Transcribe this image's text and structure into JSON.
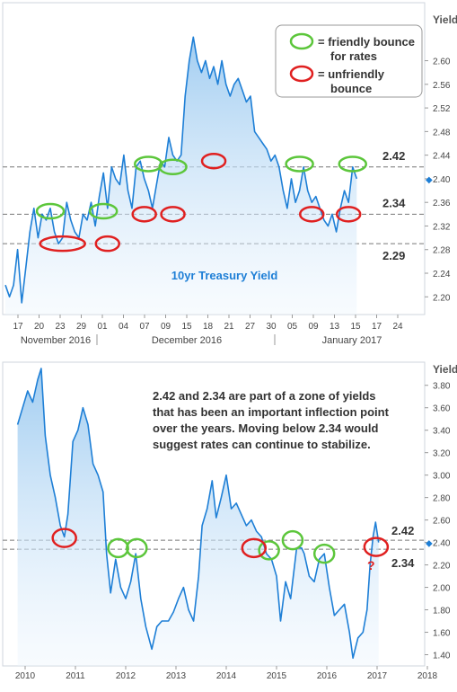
{
  "chart_data": [
    {
      "type": "line",
      "title": "10yr Treasury Yield",
      "ylabel": "Yield",
      "ylim": [
        2.17,
        2.68
      ],
      "y_ticks": [
        2.2,
        2.24,
        2.28,
        2.32,
        2.36,
        2.4,
        2.44,
        2.48,
        2.52,
        2.56,
        2.6
      ],
      "y_tick_labels": [
        "2.20",
        "2.24",
        "2.28",
        "2.32",
        "2.36",
        "2.40",
        "2.44",
        "2.48",
        "2.52",
        "2.56",
        "2.60"
      ],
      "x_day_ticks": [
        "17",
        "20",
        "23",
        "29",
        "01",
        "04",
        "07",
        "09",
        "15",
        "18",
        "21",
        "27",
        "30",
        "05",
        "09",
        "13",
        "15",
        "17",
        "24"
      ],
      "x_month_labels": [
        "November 2016",
        "December 2016",
        "January 2017"
      ],
      "reference_lines": [
        {
          "value": 2.42,
          "label": "2.42"
        },
        {
          "value": 2.34,
          "label": "2.34"
        },
        {
          "value": 2.29,
          "label": "2.29"
        }
      ],
      "current_value": 2.4,
      "current_marker": "◆",
      "series": [
        {
          "name": "10yr Treasury Yield",
          "points": [
            [
              0,
              2.22
            ],
            [
              1,
              2.2
            ],
            [
              2,
              2.22
            ],
            [
              3,
              2.28
            ],
            [
              4,
              2.19
            ],
            [
              5,
              2.25
            ],
            [
              6,
              2.31
            ],
            [
              7,
              2.35
            ],
            [
              8,
              2.3
            ],
            [
              9,
              2.34
            ],
            [
              10,
              2.33
            ],
            [
              11,
              2.35
            ],
            [
              12,
              2.31
            ],
            [
              13,
              2.29
            ],
            [
              14,
              2.3
            ],
            [
              15,
              2.36
            ],
            [
              16,
              2.33
            ],
            [
              17,
              2.31
            ],
            [
              18,
              2.3
            ],
            [
              19,
              2.34
            ],
            [
              20,
              2.33
            ],
            [
              21,
              2.36
            ],
            [
              22,
              2.32
            ],
            [
              23,
              2.37
            ],
            [
              24,
              2.41
            ],
            [
              25,
              2.35
            ],
            [
              26,
              2.42
            ],
            [
              27,
              2.4
            ],
            [
              28,
              2.39
            ],
            [
              29,
              2.44
            ],
            [
              30,
              2.38
            ],
            [
              31,
              2.35
            ],
            [
              32,
              2.42
            ],
            [
              33,
              2.43
            ],
            [
              34,
              2.4
            ],
            [
              35,
              2.38
            ],
            [
              36,
              2.35
            ],
            [
              37,
              2.39
            ],
            [
              38,
              2.43
            ],
            [
              39,
              2.42
            ],
            [
              40,
              2.47
            ],
            [
              41,
              2.44
            ],
            [
              42,
              2.43
            ],
            [
              43,
              2.44
            ],
            [
              44,
              2.54
            ],
            [
              45,
              2.6
            ],
            [
              46,
              2.64
            ],
            [
              47,
              2.6
            ],
            [
              48,
              2.58
            ],
            [
              49,
              2.6
            ],
            [
              50,
              2.57
            ],
            [
              51,
              2.59
            ],
            [
              52,
              2.56
            ],
            [
              53,
              2.6
            ],
            [
              54,
              2.56
            ],
            [
              55,
              2.54
            ],
            [
              56,
              2.56
            ],
            [
              57,
              2.57
            ],
            [
              58,
              2.55
            ],
            [
              59,
              2.53
            ],
            [
              60,
              2.54
            ],
            [
              61,
              2.48
            ],
            [
              62,
              2.47
            ],
            [
              63,
              2.46
            ],
            [
              64,
              2.45
            ],
            [
              65,
              2.43
            ],
            [
              66,
              2.44
            ],
            [
              67,
              2.42
            ],
            [
              68,
              2.38
            ],
            [
              69,
              2.35
            ],
            [
              70,
              2.4
            ],
            [
              71,
              2.36
            ],
            [
              72,
              2.38
            ],
            [
              73,
              2.42
            ],
            [
              74,
              2.38
            ],
            [
              75,
              2.36
            ],
            [
              76,
              2.37
            ],
            [
              77,
              2.35
            ],
            [
              78,
              2.33
            ],
            [
              79,
              2.32
            ],
            [
              80,
              2.34
            ],
            [
              81,
              2.31
            ],
            [
              82,
              2.35
            ],
            [
              83,
              2.38
            ],
            [
              84,
              2.36
            ],
            [
              85,
              2.42
            ],
            [
              86,
              2.4
            ]
          ]
        }
      ],
      "note_title": "10yr Treasury Yield",
      "legend": [
        {
          "label_line1": "= friendly bounce",
          "label_line2": "for rates",
          "color": "#5cc63b"
        },
        {
          "label_line1": "= unfriendly",
          "label_line2": "bounce",
          "color": "#e02020"
        }
      ],
      "annotations": {
        "friendly": [
          [
            11,
            2.345
          ],
          [
            24,
            2.345
          ],
          [
            35,
            2.425
          ],
          [
            41,
            2.42
          ],
          [
            72,
            2.425
          ],
          [
            85,
            2.425
          ]
        ],
        "unfriendly": [
          [
            14,
            2.29
          ],
          [
            25,
            2.29
          ],
          [
            34,
            2.34
          ],
          [
            41,
            2.34
          ],
          [
            51,
            2.43
          ],
          [
            75,
            2.34
          ],
          [
            84,
            2.34
          ]
        ]
      }
    },
    {
      "type": "line",
      "ylabel": "Yield",
      "ylim": [
        1.3,
        3.95
      ],
      "y_ticks": [
        1.4,
        1.6,
        1.8,
        2.0,
        2.2,
        2.4,
        2.6,
        2.8,
        3.0,
        3.2,
        3.4,
        3.6,
        3.8
      ],
      "y_tick_labels": [
        "1.40",
        "1.60",
        "1.80",
        "2.00",
        "2.20",
        "2.40",
        "2.60",
        "2.80",
        "3.00",
        "3.20",
        "3.40",
        "3.60",
        "3.80"
      ],
      "xlim": [
        2009.75,
        2018.25
      ],
      "x_ticks": [
        2010,
        2011,
        2012,
        2013,
        2014,
        2015,
        2016,
        2017,
        2018
      ],
      "x_tick_labels": [
        "2010",
        "2011",
        "2012",
        "2013",
        "2014",
        "2015",
        "2016",
        "2017",
        "2018"
      ],
      "reference_lines": [
        {
          "value": 2.42,
          "label": "2.42"
        },
        {
          "value": 2.34,
          "label": "2.34"
        }
      ],
      "current_value": 2.4,
      "current_marker": "◆",
      "series": [
        {
          "name": "10yr Treasury Yield",
          "points": [
            [
              2009.85,
              3.45
            ],
            [
              2009.95,
              3.6
            ],
            [
              2010.05,
              3.75
            ],
            [
              2010.15,
              3.65
            ],
            [
              2010.25,
              3.85
            ],
            [
              2010.32,
              3.95
            ],
            [
              2010.4,
              3.35
            ],
            [
              2010.5,
              3.0
            ],
            [
              2010.6,
              2.8
            ],
            [
              2010.7,
              2.55
            ],
            [
              2010.78,
              2.45
            ],
            [
              2010.85,
              2.65
            ],
            [
              2010.95,
              3.3
            ],
            [
              2011.05,
              3.4
            ],
            [
              2011.15,
              3.6
            ],
            [
              2011.25,
              3.45
            ],
            [
              2011.35,
              3.1
            ],
            [
              2011.45,
              3.0
            ],
            [
              2011.55,
              2.85
            ],
            [
              2011.62,
              2.3
            ],
            [
              2011.7,
              1.95
            ],
            [
              2011.8,
              2.25
            ],
            [
              2011.9,
              2.0
            ],
            [
              2012.0,
              1.9
            ],
            [
              2012.1,
              2.05
            ],
            [
              2012.2,
              2.3
            ],
            [
              2012.3,
              1.9
            ],
            [
              2012.4,
              1.65
            ],
            [
              2012.52,
              1.45
            ],
            [
              2012.62,
              1.65
            ],
            [
              2012.72,
              1.7
            ],
            [
              2012.85,
              1.7
            ],
            [
              2012.95,
              1.78
            ],
            [
              2013.05,
              1.9
            ],
            [
              2013.15,
              2.0
            ],
            [
              2013.25,
              1.8
            ],
            [
              2013.35,
              1.7
            ],
            [
              2013.45,
              2.1
            ],
            [
              2013.52,
              2.55
            ],
            [
              2013.62,
              2.7
            ],
            [
              2013.72,
              2.95
            ],
            [
              2013.8,
              2.62
            ],
            [
              2013.9,
              2.8
            ],
            [
              2014.0,
              3.0
            ],
            [
              2014.1,
              2.7
            ],
            [
              2014.2,
              2.75
            ],
            [
              2014.3,
              2.65
            ],
            [
              2014.4,
              2.55
            ],
            [
              2014.5,
              2.6
            ],
            [
              2014.6,
              2.5
            ],
            [
              2014.7,
              2.45
            ],
            [
              2014.8,
              2.3
            ],
            [
              2014.9,
              2.25
            ],
            [
              2015.0,
              2.1
            ],
            [
              2015.08,
              1.7
            ],
            [
              2015.18,
              2.05
            ],
            [
              2015.28,
              1.9
            ],
            [
              2015.4,
              2.35
            ],
            [
              2015.5,
              2.35
            ],
            [
              2015.55,
              2.3
            ],
            [
              2015.65,
              2.1
            ],
            [
              2015.75,
              2.05
            ],
            [
              2015.85,
              2.25
            ],
            [
              2015.95,
              2.3
            ],
            [
              2016.05,
              2.0
            ],
            [
              2016.15,
              1.75
            ],
            [
              2016.25,
              1.8
            ],
            [
              2016.35,
              1.85
            ],
            [
              2016.45,
              1.6
            ],
            [
              2016.52,
              1.37
            ],
            [
              2016.62,
              1.55
            ],
            [
              2016.72,
              1.6
            ],
            [
              2016.8,
              1.8
            ],
            [
              2016.86,
              2.2
            ],
            [
              2016.92,
              2.45
            ],
            [
              2016.97,
              2.58
            ],
            [
              2017.03,
              2.4
            ]
          ]
        }
      ],
      "annotations": {
        "note_lines": [
          "2.42 and 2.34 are part of a zone of yields",
          "that has been an important inflection point",
          "over the years.  Moving below 2.34 would",
          "suggest rates can continue to stabilize."
        ],
        "question_mark": "?",
        "friendly": [
          [
            2011.85,
            2.35
          ],
          [
            2012.22,
            2.35
          ],
          [
            2014.85,
            2.33
          ],
          [
            2015.32,
            2.42
          ],
          [
            2015.95,
            2.3
          ]
        ],
        "unfriendly": [
          [
            2010.78,
            2.44
          ],
          [
            2014.55,
            2.35
          ],
          [
            2016.98,
            2.36
          ]
        ]
      }
    }
  ]
}
